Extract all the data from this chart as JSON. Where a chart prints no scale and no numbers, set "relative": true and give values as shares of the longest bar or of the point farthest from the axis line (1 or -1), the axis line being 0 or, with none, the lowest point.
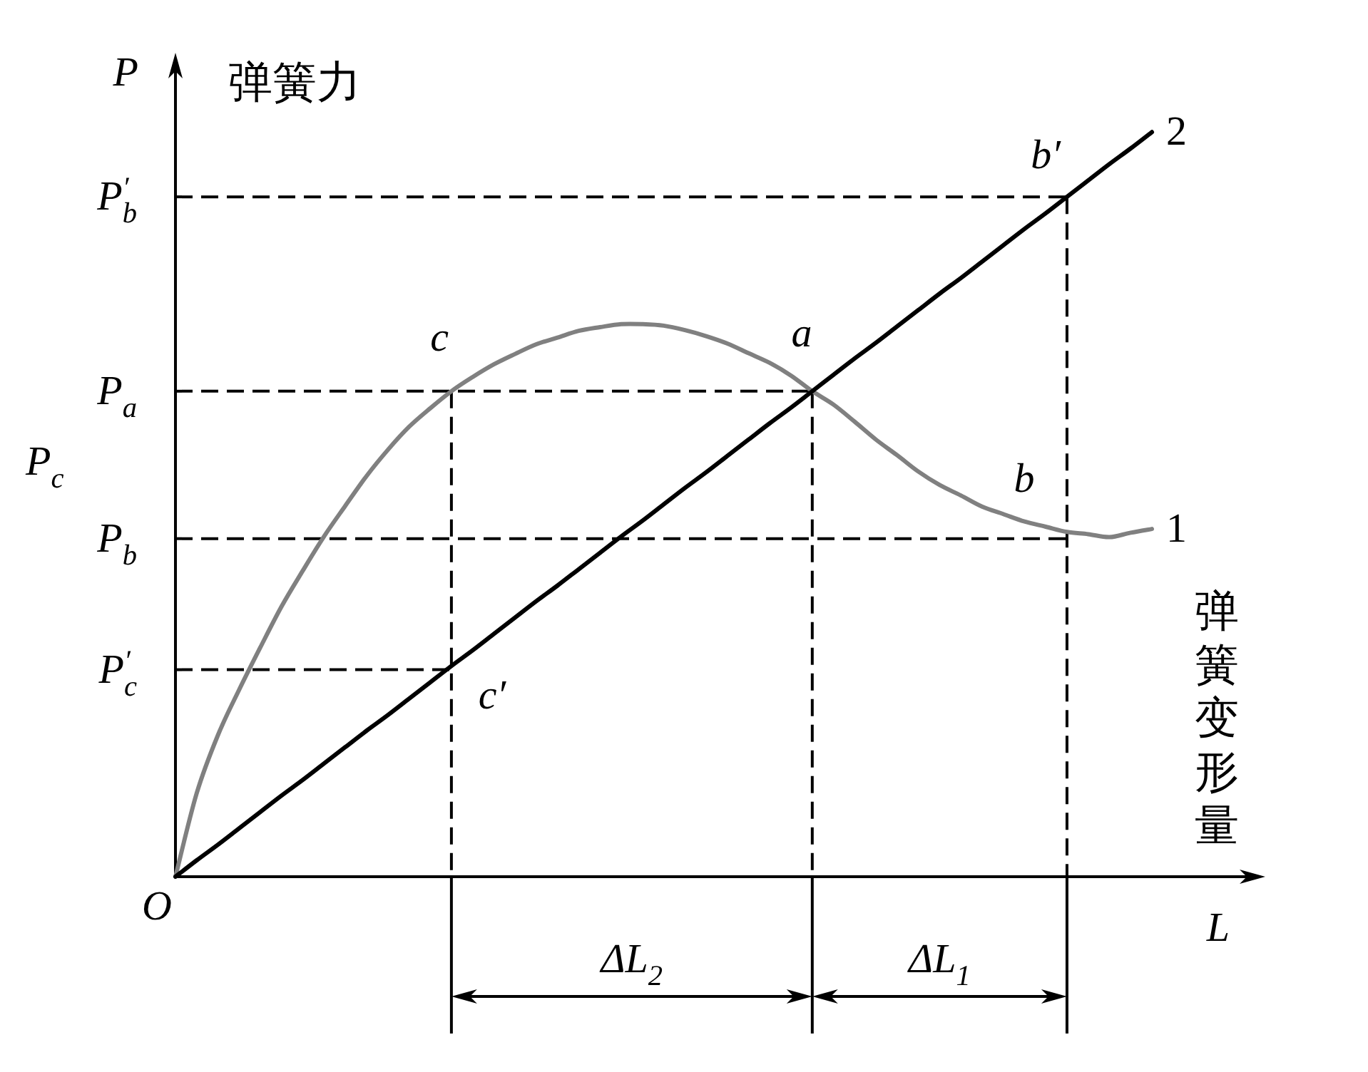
{
  "chart_data": {
    "type": "line",
    "relative": true,
    "xlabel": "L",
    "ylabel": "P",
    "categories": [
      null,
      null,
      null,
      null,
      null,
      null,
      null,
      null,
      null,
      null,
      null,
      null,
      null,
      null,
      null,
      null,
      null,
      null,
      null,
      null,
      null,
      null,
      null,
      null,
      null,
      null,
      null,
      null,
      null,
      null,
      null,
      null,
      null,
      null,
      null,
      null,
      null,
      null,
      null,
      null,
      null,
      null,
      null,
      null,
      null,
      null,
      null
    ],
    "series": [
      {
        "name": "1",
        "color": "#808080",
        "values": [
          0,
          0.112,
          0.19,
          0.251,
          0.308,
          0.363,
          0.411,
          0.457,
          0.498,
          0.538,
          0.573,
          0.604,
          0.629,
          0.652,
          0.671,
          0.688,
          0.702,
          0.715,
          0.724,
          0.733,
          0.738,
          0.742,
          0.742,
          0.74,
          0.734,
          0.726,
          0.716,
          0.703,
          0.69,
          0.673,
          0.652,
          0.634,
          0.611,
          0.587,
          0.566,
          0.544,
          0.526,
          0.512,
          0.497,
          0.487,
          0.477,
          0.47,
          0.463,
          0.46,
          0.456,
          0.462,
          0.467
        ]
      },
      {
        "name": "2",
        "color": "#000000",
        "values": [
          0,
          0.022,
          0.043,
          0.065,
          0.087,
          0.109,
          0.13,
          0.152,
          0.174,
          0.196,
          0.217,
          0.239,
          0.261,
          0.283,
          0.304,
          0.326,
          0.348,
          0.37,
          0.391,
          0.413,
          0.435,
          0.457,
          0.478,
          0.5,
          0.522,
          0.543,
          0.565,
          0.587,
          0.609,
          0.63,
          0.652,
          0.674,
          0.696,
          0.717,
          0.739,
          0.761,
          0.783,
          0.804,
          0.826,
          0.848,
          0.87,
          0.891,
          0.913,
          0.935,
          0.957,
          0.978,
          1
        ]
      }
    ],
    "ref_lines": [
      {
        "axis": "y",
        "value": 0.913,
        "label": "P$^{′}$$_{b}$",
        "line_style": "dashed"
      },
      {
        "axis": "y",
        "value": 0.652,
        "label": "P$_{a}$",
        "line_style": "dashed"
      },
      {
        "axis": "y",
        "value": 0.454,
        "label": "P$_{b}$",
        "line_style": "dashed"
      },
      {
        "axis": "y",
        "value": 0.278,
        "label": "P$^{′}$$_{c}$",
        "line_style": "dashed"
      }
    ],
    "annotations": [
      "c",
      "a",
      "b′",
      "b",
      "c′",
      "弹簧力",
      "弹簧变形量",
      "P$_{c}$",
      "O",
      "ΔL$_{2}$",
      "ΔL$_{1}$"
    ]
  }
}
